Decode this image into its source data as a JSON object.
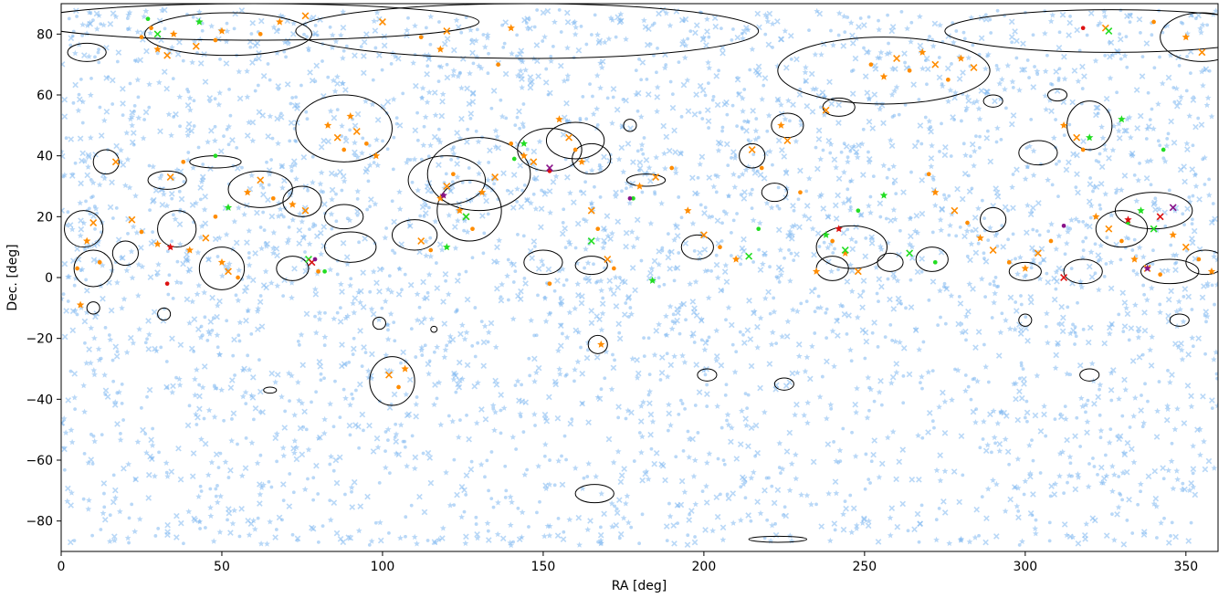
{
  "chart_data": {
    "type": "scatter",
    "title": "",
    "xlabel": "RA [deg]",
    "ylabel": "Dec. [deg]",
    "xlim": [
      0,
      360
    ],
    "ylim": [
      -90,
      90
    ],
    "xticks": [
      0,
      50,
      100,
      150,
      200,
      250,
      300,
      350
    ],
    "yticks": [
      -80,
      -60,
      -40,
      -20,
      0,
      20,
      40,
      60,
      80
    ],
    "grid": false,
    "legend": "none",
    "colors": {
      "background_sources": "#7fb8f0",
      "matched_sources": "#ff8c00",
      "green_sources": "#22dd22",
      "red_sources": "#dd1111",
      "purple_sources": "#881188",
      "ellipse_outline": "#000000"
    },
    "marker_types": [
      "dot",
      "star",
      "x"
    ],
    "series": [
      {
        "role": "background_sources",
        "color": "#7fb8f0",
        "approx_count": 4000,
        "distribution": "dense at Dec > -20, sparser to the south",
        "dec_range": [
          -88,
          88
        ]
      },
      {
        "role": "matched_sources",
        "color": "#ff8c00",
        "points": [
          [
            5,
            3
          ],
          [
            8,
            12
          ],
          [
            10,
            18
          ],
          [
            12,
            5
          ],
          [
            6,
            -9
          ],
          [
            17,
            38
          ],
          [
            25,
            79
          ],
          [
            30,
            75
          ],
          [
            33,
            73
          ],
          [
            28,
            82
          ],
          [
            35,
            80
          ],
          [
            42,
            76
          ],
          [
            48,
            78
          ],
          [
            50,
            81
          ],
          [
            22,
            19
          ],
          [
            25,
            15
          ],
          [
            30,
            11
          ],
          [
            34,
            33
          ],
          [
            38,
            38
          ],
          [
            40,
            9
          ],
          [
            45,
            13
          ],
          [
            48,
            20
          ],
          [
            50,
            5
          ],
          [
            52,
            2
          ],
          [
            55,
            0
          ],
          [
            58,
            28
          ],
          [
            62,
            32
          ],
          [
            66,
            26
          ],
          [
            72,
            24
          ],
          [
            76,
            22
          ],
          [
            80,
            2
          ],
          [
            83,
            50
          ],
          [
            86,
            46
          ],
          [
            88,
            42
          ],
          [
            90,
            53
          ],
          [
            92,
            48
          ],
          [
            95,
            44
          ],
          [
            98,
            40
          ],
          [
            102,
            -32
          ],
          [
            105,
            -36
          ],
          [
            107,
            -30
          ],
          [
            112,
            12
          ],
          [
            115,
            9
          ],
          [
            118,
            26
          ],
          [
            120,
            30
          ],
          [
            122,
            34
          ],
          [
            124,
            22
          ],
          [
            126,
            20
          ],
          [
            128,
            16
          ],
          [
            131,
            28
          ],
          [
            135,
            33
          ],
          [
            140,
            44
          ],
          [
            144,
            40
          ],
          [
            147,
            38
          ],
          [
            152,
            -2
          ],
          [
            155,
            52
          ],
          [
            158,
            46
          ],
          [
            160,
            42
          ],
          [
            162,
            38
          ],
          [
            165,
            22
          ],
          [
            167,
            16
          ],
          [
            168,
            -22
          ],
          [
            170,
            6
          ],
          [
            172,
            3
          ],
          [
            180,
            30
          ],
          [
            185,
            33
          ],
          [
            190,
            36
          ],
          [
            195,
            22
          ],
          [
            200,
            14
          ],
          [
            205,
            10
          ],
          [
            210,
            6
          ],
          [
            215,
            42
          ],
          [
            218,
            36
          ],
          [
            224,
            50
          ],
          [
            226,
            45
          ],
          [
            230,
            28
          ],
          [
            235,
            2
          ],
          [
            238,
            55
          ],
          [
            240,
            12
          ],
          [
            244,
            8
          ],
          [
            248,
            2
          ],
          [
            252,
            70
          ],
          [
            256,
            66
          ],
          [
            260,
            72
          ],
          [
            264,
            68
          ],
          [
            268,
            74
          ],
          [
            272,
            70
          ],
          [
            276,
            65
          ],
          [
            280,
            72
          ],
          [
            284,
            69
          ],
          [
            270,
            34
          ],
          [
            272,
            28
          ],
          [
            278,
            22
          ],
          [
            282,
            18
          ],
          [
            286,
            13
          ],
          [
            290,
            9
          ],
          [
            295,
            5
          ],
          [
            300,
            3
          ],
          [
            304,
            8
          ],
          [
            308,
            12
          ],
          [
            312,
            50
          ],
          [
            316,
            46
          ],
          [
            318,
            42
          ],
          [
            322,
            20
          ],
          [
            326,
            16
          ],
          [
            330,
            12
          ],
          [
            334,
            6
          ],
          [
            338,
            3
          ],
          [
            342,
            1
          ],
          [
            346,
            14
          ],
          [
            350,
            10
          ],
          [
            354,
            6
          ],
          [
            358,
            2
          ],
          [
            325,
            82
          ],
          [
            340,
            84
          ],
          [
            350,
            79
          ],
          [
            355,
            74
          ],
          [
            136,
            70
          ],
          [
            140,
            82
          ],
          [
            100,
            84
          ],
          [
            112,
            79
          ],
          [
            118,
            75
          ],
          [
            120,
            81
          ],
          [
            62,
            80
          ],
          [
            68,
            84
          ],
          [
            76,
            86
          ]
        ]
      },
      {
        "role": "green_sources",
        "color": "#22dd22",
        "points": [
          [
            27,
            85
          ],
          [
            43,
            84
          ],
          [
            30,
            80
          ],
          [
            48,
            40
          ],
          [
            52,
            23
          ],
          [
            77,
            6
          ],
          [
            82,
            2
          ],
          [
            120,
            10
          ],
          [
            126,
            20
          ],
          [
            141,
            39
          ],
          [
            144,
            44
          ],
          [
            165,
            12
          ],
          [
            178,
            26
          ],
          [
            184,
            -1
          ],
          [
            214,
            7
          ],
          [
            217,
            16
          ],
          [
            238,
            14
          ],
          [
            244,
            9
          ],
          [
            248,
            22
          ],
          [
            256,
            27
          ],
          [
            264,
            8
          ],
          [
            272,
            5
          ],
          [
            320,
            46
          ],
          [
            326,
            81
          ],
          [
            332,
            18
          ],
          [
            336,
            22
          ],
          [
            340,
            16
          ],
          [
            343,
            42
          ],
          [
            330,
            52
          ]
        ]
      },
      {
        "role": "red_sources",
        "color": "#dd1111",
        "points": [
          [
            33,
            -2
          ],
          [
            34,
            10
          ],
          [
            78,
            5
          ],
          [
            152,
            35
          ],
          [
            242,
            16
          ],
          [
            312,
            0
          ],
          [
            318,
            82
          ],
          [
            332,
            19
          ],
          [
            342,
            20
          ]
        ]
      },
      {
        "role": "purple_sources",
        "color": "#881188",
        "points": [
          [
            79,
            6
          ],
          [
            119,
            27
          ],
          [
            152,
            36
          ],
          [
            177,
            26
          ],
          [
            338,
            3
          ],
          [
            346,
            23
          ],
          [
            312,
            17
          ]
        ]
      },
      {
        "role": "region_ellipses",
        "color": "#000000",
        "ellipses": [
          [
            60,
            84,
            70,
            6
          ],
          [
            145,
            81,
            72,
            9
          ],
          [
            52,
            80,
            26,
            7
          ],
          [
            8,
            74,
            6,
            3
          ],
          [
            327,
            81,
            52,
            7
          ],
          [
            355,
            79,
            13,
            8
          ],
          [
            256,
            68,
            33,
            11
          ],
          [
            88,
            49,
            15,
            11
          ],
          [
            130,
            34,
            16,
            12
          ],
          [
            120,
            32,
            12,
            8
          ],
          [
            127,
            22,
            10,
            10
          ],
          [
            152,
            42,
            10,
            7
          ],
          [
            160,
            45,
            9,
            6
          ],
          [
            165,
            39,
            6,
            5
          ],
          [
            14,
            38,
            4,
            4
          ],
          [
            33,
            32,
            6,
            3
          ],
          [
            48,
            38,
            8,
            2
          ],
          [
            62,
            29,
            10,
            6
          ],
          [
            75,
            25,
            6,
            5
          ],
          [
            88,
            20,
            6,
            4
          ],
          [
            7,
            16,
            6,
            6
          ],
          [
            20,
            8,
            4,
            4
          ],
          [
            36,
            16,
            6,
            6
          ],
          [
            50,
            3,
            7,
            7
          ],
          [
            10,
            3,
            6,
            6
          ],
          [
            72,
            3,
            5,
            4
          ],
          [
            90,
            10,
            8,
            5
          ],
          [
            110,
            14,
            7,
            5
          ],
          [
            150,
            5,
            6,
            4
          ],
          [
            165,
            4,
            5,
            3
          ],
          [
            182,
            32,
            6,
            2
          ],
          [
            198,
            10,
            5,
            4
          ],
          [
            215,
            40,
            4,
            4
          ],
          [
            222,
            28,
            4,
            3
          ],
          [
            226,
            50,
            5,
            4
          ],
          [
            242,
            56,
            5,
            3
          ],
          [
            246,
            10,
            11,
            7
          ],
          [
            240,
            3,
            5,
            4
          ],
          [
            271,
            6,
            5,
            4
          ],
          [
            290,
            19,
            4,
            4
          ],
          [
            304,
            41,
            6,
            4
          ],
          [
            320,
            50,
            7,
            8
          ],
          [
            340,
            22,
            12,
            6
          ],
          [
            330,
            16,
            8,
            6
          ],
          [
            345,
            2,
            9,
            4
          ],
          [
            356,
            5,
            6,
            4
          ],
          [
            318,
            2,
            6,
            4
          ],
          [
            300,
            2,
            5,
            3
          ],
          [
            258,
            5,
            4,
            3
          ],
          [
            320,
            -32,
            3,
            2
          ],
          [
            166,
            -71,
            6,
            3
          ],
          [
            223,
            -86,
            9,
            1
          ],
          [
            201,
            -32,
            3,
            2
          ],
          [
            225,
            -35,
            3,
            2
          ],
          [
            103,
            -34,
            7,
            8
          ],
          [
            167,
            -22,
            3,
            3
          ],
          [
            99,
            -15,
            2,
            2
          ],
          [
            65,
            -37,
            2,
            1
          ],
          [
            32,
            -12,
            2,
            2
          ],
          [
            10,
            -10,
            2,
            2
          ],
          [
            300,
            -14,
            2,
            2
          ],
          [
            348,
            -14,
            3,
            2
          ],
          [
            116,
            -17,
            1,
            1
          ],
          [
            177,
            50,
            2,
            2
          ],
          [
            310,
            60,
            3,
            2
          ],
          [
            290,
            58,
            3,
            2
          ]
        ]
      }
    ]
  }
}
